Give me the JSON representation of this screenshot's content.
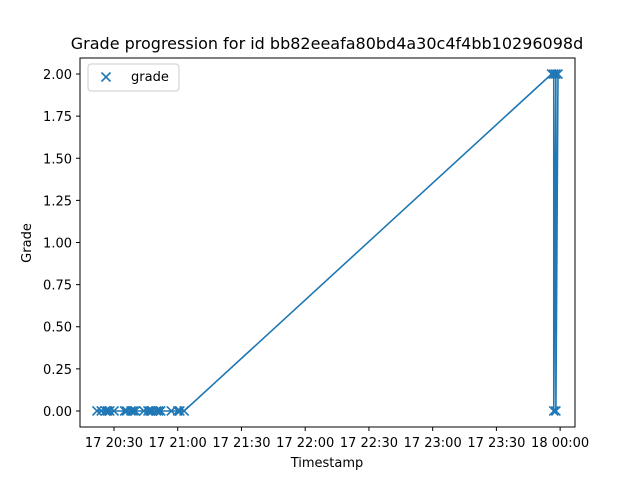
{
  "chart_data": {
    "type": "line",
    "title": "Grade progression for id bb82eeafa80bd4a30c4f4bb10296098d",
    "xlabel": "Timestamp",
    "ylabel": "Grade",
    "x_tick_labels": [
      "17 20:30",
      "17 21:00",
      "17 21:30",
      "17 22:00",
      "17 22:30",
      "17 23:00",
      "17 23:30",
      "18 00:00"
    ],
    "y_tick_labels": [
      "0.00",
      "0.25",
      "0.50",
      "0.75",
      "1.00",
      "1.25",
      "1.50",
      "1.75",
      "2.00"
    ],
    "ylim": [
      -0.095,
      2.095
    ],
    "xlim": [
      "17 20:14",
      "18 00:07"
    ],
    "legend_position": "top-left",
    "marker": "x",
    "color": "#1f77b4",
    "grid": false,
    "series": [
      {
        "name": "grade",
        "x": [
          "17 20:22",
          "17 20:24",
          "17 20:26",
          "17 20:27",
          "17 20:28",
          "17 20:30",
          "17 20:35",
          "17 20:36",
          "17 20:38",
          "17 20:39",
          "17 20:40",
          "17 20:44",
          "17 20:46",
          "17 20:47",
          "17 20:48",
          "17 20:50",
          "17 20:51",
          "17 20:52",
          "17 20:57",
          "17 21:00",
          "17 21:01",
          "17 21:03",
          "17 23:56",
          "17 23:57",
          "17 23:57",
          "17 23:58",
          "17 23:58",
          "17 23:59"
        ],
        "y": [
          0,
          0,
          0,
          0,
          0,
          0,
          0,
          0,
          0,
          0,
          0,
          0,
          0,
          0,
          0,
          0,
          0,
          0,
          0,
          0,
          0,
          0,
          2,
          2,
          0,
          2,
          0,
          2
        ]
      }
    ]
  }
}
